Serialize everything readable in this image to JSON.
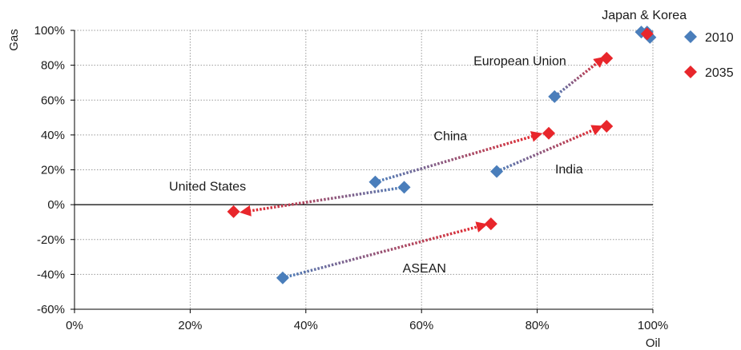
{
  "chart_data": {
    "type": "scatter",
    "xlabel": "Oil",
    "ylabel": "Gas",
    "xlim": [
      0,
      100
    ],
    "ylim": [
      -60,
      100
    ],
    "x_ticks": [
      "0%",
      "20%",
      "40%",
      "60%",
      "80%",
      "100%"
    ],
    "y_ticks": [
      "-60%",
      "-40%",
      "-20%",
      "0%",
      "20%",
      "40%",
      "60%",
      "80%",
      "100%"
    ],
    "grid": true,
    "legend_position": "right",
    "series": [
      {
        "name": "2010",
        "color": "#4a7ebb",
        "points": [
          {
            "x": 98,
            "y": 99
          },
          {
            "x": 99,
            "y": 99
          },
          {
            "x": 99.5,
            "y": 96
          },
          {
            "x": 83,
            "y": 62
          },
          {
            "x": 52,
            "y": 13
          },
          {
            "x": 57,
            "y": 10
          },
          {
            "x": 73,
            "y": 19
          },
          {
            "x": 36,
            "y": -42
          }
        ]
      },
      {
        "name": "2035",
        "color": "#e8262b",
        "points": [
          {
            "x": 99,
            "y": 98
          },
          {
            "x": 92,
            "y": 84
          },
          {
            "x": 82,
            "y": 41
          },
          {
            "x": 92,
            "y": 45
          },
          {
            "x": 27.5,
            "y": -4
          },
          {
            "x": 72,
            "y": -11
          }
        ]
      }
    ],
    "arrows": [
      {
        "label": "United States",
        "from": [
          57,
          10
        ],
        "to": [
          29.5,
          -4
        ]
      },
      {
        "label": "China",
        "from": [
          52,
          13
        ],
        "to": [
          80,
          40
        ]
      },
      {
        "label": "European Union",
        "from": [
          83,
          62
        ],
        "to": [
          91,
          83
        ]
      },
      {
        "label": "India",
        "from": [
          73,
          19
        ],
        "to": [
          90.5,
          44
        ]
      },
      {
        "label": "ASEAN",
        "from": [
          36,
          -42
        ],
        "to": [
          70.5,
          -12
        ]
      }
    ],
    "annotations": [
      {
        "text": "Japan & Korea",
        "x": 98.5,
        "y": 106.5
      },
      {
        "text": "European Union",
        "x": 77,
        "y": 80
      },
      {
        "text": "China",
        "x": 65,
        "y": 37
      },
      {
        "text": "India",
        "x": 85.5,
        "y": 18
      },
      {
        "text": "United States",
        "x": 23,
        "y": 8
      },
      {
        "text": "ASEAN",
        "x": 60.5,
        "y": -39
      }
    ]
  }
}
